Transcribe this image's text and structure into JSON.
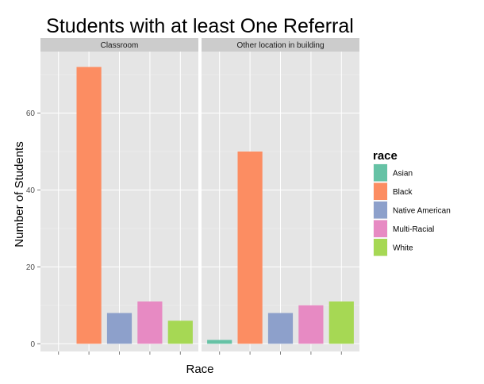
{
  "chart_data": {
    "type": "bar",
    "title": "Students with at least One Referral",
    "xlabel": "Race",
    "ylabel": "Number of Students",
    "ylim": [
      -2,
      76
    ],
    "yticks": [
      0,
      20,
      40,
      60
    ],
    "grid": true,
    "legend_position": "right",
    "legend_title": "race",
    "categories": [
      "Asian",
      "Black",
      "Native American",
      "Multi-Racial",
      "White"
    ],
    "colors": [
      "#66c2a5",
      "#fc8d62",
      "#8da0cb",
      "#e78ac3",
      "#a6d854"
    ],
    "facets": [
      {
        "name": "Classroom",
        "values": [
          0,
          72,
          8,
          11,
          6
        ]
      },
      {
        "name": "Other location in building",
        "values": [
          1,
          50,
          8,
          10,
          11
        ]
      }
    ]
  }
}
